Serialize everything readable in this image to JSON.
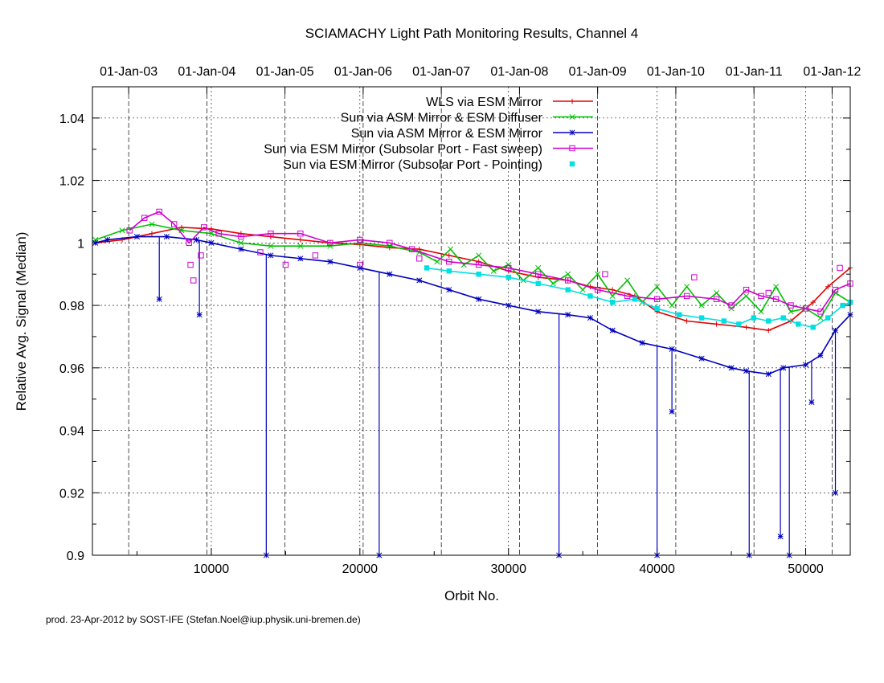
{
  "chart_data": {
    "type": "line",
    "title": "SCIAMACHY Light Path Monitoring Results, Channel 4",
    "xlabel": "Orbit No.",
    "ylabel": "Relative Avg. Signal (Median)",
    "xlim": [
      2000,
      53000
    ],
    "ylim": [
      0.9,
      1.05
    ],
    "grid": true,
    "legend_position": "top-right",
    "x_ticks": [
      10000,
      20000,
      30000,
      40000,
      50000
    ],
    "x_tick_labels": [
      "10000",
      "20000",
      "30000",
      "40000",
      "50000"
    ],
    "y_ticks": [
      0.9,
      0.92,
      0.94,
      0.96,
      0.98,
      1.0,
      1.02,
      1.04
    ],
    "y_tick_labels": [
      "0.9",
      "0.92",
      "0.94",
      "0.96",
      "0.98",
      "1",
      "1.02",
      "1.04"
    ],
    "top_axis": {
      "ticks": [
        4440,
        9700,
        14960,
        20220,
        25480,
        30740,
        36000,
        41260,
        46520,
        51780
      ],
      "tick_labels": [
        "01-Jan-03",
        "01-Jan-04",
        "01-Jan-05",
        "01-Jan-06",
        "01-Jan-07",
        "01-Jan-08",
        "01-Jan-09",
        "01-Jan-10",
        "01-Jan-11",
        "01-Jan-12"
      ]
    },
    "series": [
      {
        "name": "WLS via ESM Mirror",
        "color": "#e00000",
        "marker": "plus",
        "points": [
          [
            2200,
            1.0
          ],
          [
            4000,
            1.001
          ],
          [
            6000,
            1.003
          ],
          [
            8000,
            1.005
          ],
          [
            10000,
            1.0045
          ],
          [
            12000,
            1.003
          ],
          [
            14000,
            1.002
          ],
          [
            16000,
            1.001
          ],
          [
            18000,
            1.0
          ],
          [
            20000,
            0.9995
          ],
          [
            22000,
            0.9985
          ],
          [
            24000,
            0.998
          ],
          [
            26000,
            0.996
          ],
          [
            28000,
            0.994
          ],
          [
            30000,
            0.991
          ],
          [
            32000,
            0.989
          ],
          [
            34000,
            0.988
          ],
          [
            35500,
            0.986
          ],
          [
            37000,
            0.985
          ],
          [
            38500,
            0.983
          ],
          [
            40000,
            0.978
          ],
          [
            42000,
            0.975
          ],
          [
            44000,
            0.974
          ],
          [
            46000,
            0.973
          ],
          [
            47500,
            0.972
          ],
          [
            49000,
            0.975
          ],
          [
            50500,
            0.981
          ],
          [
            51500,
            0.986
          ],
          [
            53000,
            0.992
          ]
        ]
      },
      {
        "name": "Sun via ASM Mirror & ESM Diffuser",
        "color": "#00c000",
        "marker": "cross",
        "points": [
          [
            2200,
            1.001
          ],
          [
            4000,
            1.004
          ],
          [
            6000,
            1.006
          ],
          [
            8000,
            1.004
          ],
          [
            10000,
            1.003
          ],
          [
            12000,
            1.0
          ],
          [
            14000,
            0.999
          ],
          [
            16000,
            0.999
          ],
          [
            18000,
            0.999
          ],
          [
            20000,
            1.0
          ],
          [
            22000,
            0.999
          ],
          [
            24000,
            0.997
          ],
          [
            25200,
            0.994
          ],
          [
            26100,
            0.998
          ],
          [
            27000,
            0.993
          ],
          [
            28000,
            0.996
          ],
          [
            29000,
            0.991
          ],
          [
            30000,
            0.993
          ],
          [
            31000,
            0.988
          ],
          [
            32000,
            0.992
          ],
          [
            33000,
            0.987
          ],
          [
            34000,
            0.99
          ],
          [
            35000,
            0.985
          ],
          [
            36000,
            0.99
          ],
          [
            37000,
            0.983
          ],
          [
            38000,
            0.988
          ],
          [
            39000,
            0.981
          ],
          [
            40000,
            0.986
          ],
          [
            41000,
            0.98
          ],
          [
            42000,
            0.986
          ],
          [
            43000,
            0.98
          ],
          [
            44000,
            0.984
          ],
          [
            45000,
            0.979
          ],
          [
            46000,
            0.983
          ],
          [
            47000,
            0.978
          ],
          [
            48000,
            0.986
          ],
          [
            49000,
            0.978
          ],
          [
            50000,
            0.979
          ],
          [
            51000,
            0.976
          ],
          [
            52000,
            0.984
          ],
          [
            53000,
            0.981
          ]
        ]
      },
      {
        "name": "Sun via ASM Mirror & ESM Mirror",
        "color": "#0000c0",
        "marker": "star",
        "points": [
          [
            2200,
            1.0
          ],
          [
            3000,
            1.001
          ],
          [
            5000,
            1.002
          ],
          [
            7000,
            1.002
          ],
          [
            9000,
            1.001
          ],
          [
            10000,
            1.0
          ],
          [
            12000,
            0.998
          ],
          [
            14000,
            0.996
          ],
          [
            16000,
            0.995
          ],
          [
            18000,
            0.994
          ],
          [
            20000,
            0.992
          ],
          [
            22000,
            0.99
          ],
          [
            24000,
            0.988
          ],
          [
            26000,
            0.985
          ],
          [
            28000,
            0.982
          ],
          [
            30000,
            0.98
          ],
          [
            32000,
            0.978
          ],
          [
            34000,
            0.977
          ],
          [
            35500,
            0.976
          ],
          [
            37000,
            0.972
          ],
          [
            39000,
            0.968
          ],
          [
            41000,
            0.966
          ],
          [
            43000,
            0.963
          ],
          [
            45000,
            0.96
          ],
          [
            46000,
            0.959
          ],
          [
            47500,
            0.958
          ],
          [
            48500,
            0.96
          ],
          [
            50000,
            0.961
          ],
          [
            51000,
            0.964
          ],
          [
            52000,
            0.972
          ],
          [
            53000,
            0.977
          ]
        ],
        "dips": [
          [
            6500,
            0.982
          ],
          [
            9200,
            0.977
          ],
          [
            13700,
            0.9
          ],
          [
            21300,
            0.9
          ],
          [
            33400,
            0.9
          ],
          [
            40000,
            0.9
          ],
          [
            41000,
            0.946
          ],
          [
            46200,
            0.9
          ],
          [
            48300,
            0.906
          ],
          [
            48900,
            0.9
          ],
          [
            50400,
            0.949
          ],
          [
            52000,
            0.92
          ]
        ]
      },
      {
        "name": "Sun via ESM Mirror (Subsolar Port - Fast sweep)",
        "color": "#d000d0",
        "marker": "open-square",
        "points": [
          [
            4500,
            1.004
          ],
          [
            5500,
            1.008
          ],
          [
            6500,
            1.01
          ],
          [
            7500,
            1.006
          ],
          [
            8500,
            1.0
          ],
          [
            9500,
            1.005
          ],
          [
            10500,
            1.003
          ],
          [
            12000,
            1.002
          ],
          [
            14000,
            1.003
          ],
          [
            16000,
            1.003
          ],
          [
            18000,
            1.0
          ],
          [
            20000,
            1.001
          ],
          [
            22000,
            1.0
          ],
          [
            23500,
            0.998
          ],
          [
            26000,
            0.994
          ],
          [
            28000,
            0.993
          ],
          [
            30000,
            0.992
          ],
          [
            32000,
            0.99
          ],
          [
            34000,
            0.988
          ],
          [
            36000,
            0.985
          ],
          [
            38000,
            0.983
          ],
          [
            40000,
            0.982
          ],
          [
            42000,
            0.983
          ],
          [
            44000,
            0.982
          ],
          [
            45000,
            0.98
          ],
          [
            46000,
            0.985
          ],
          [
            47000,
            0.983
          ],
          [
            48000,
            0.982
          ],
          [
            49000,
            0.98
          ],
          [
            50000,
            0.979
          ],
          [
            51000,
            0.978
          ],
          [
            52000,
            0.985
          ],
          [
            53000,
            0.987
          ]
        ],
        "excursions": [
          [
            8600,
            0.993
          ],
          [
            8800,
            0.988
          ],
          [
            9300,
            0.996
          ],
          [
            13300,
            0.997
          ],
          [
            15000,
            0.993
          ],
          [
            17000,
            0.996
          ],
          [
            20000,
            0.993
          ],
          [
            24000,
            0.995
          ],
          [
            36500,
            0.99
          ],
          [
            42500,
            0.989
          ],
          [
            47500,
            0.984
          ],
          [
            52300,
            0.992
          ]
        ]
      },
      {
        "name": "Sun via ESM Mirror (Subsolar Port - Pointing)",
        "color": "#00e0e0",
        "marker": "filled-square",
        "points": [
          [
            24500,
            0.992
          ],
          [
            26000,
            0.991
          ],
          [
            28000,
            0.99
          ],
          [
            30000,
            0.989
          ],
          [
            32000,
            0.987
          ],
          [
            34000,
            0.985
          ],
          [
            35500,
            0.983
          ],
          [
            37000,
            0.981
          ],
          [
            38500,
            0.982
          ],
          [
            40000,
            0.979
          ],
          [
            41500,
            0.977
          ],
          [
            43000,
            0.976
          ],
          [
            44500,
            0.975
          ],
          [
            45500,
            0.974
          ],
          [
            46500,
            0.976
          ],
          [
            47500,
            0.975
          ],
          [
            48500,
            0.976
          ],
          [
            49500,
            0.974
          ],
          [
            50500,
            0.973
          ],
          [
            51500,
            0.976
          ],
          [
            52500,
            0.98
          ],
          [
            53000,
            0.981
          ]
        ]
      }
    ]
  },
  "footer": "prod. 23-Apr-2012 by SOST-IFE (Stefan.Noel@iup.physik.uni-bremen.de)"
}
